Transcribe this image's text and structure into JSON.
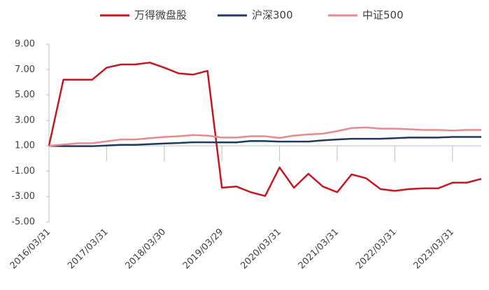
{
  "chart_data": {
    "type": "line",
    "categories": [
      "2016/03/31",
      null,
      null,
      null,
      "2017/03/31",
      null,
      null,
      null,
      "2018/03/30",
      null,
      null,
      null,
      "2019/03/29",
      null,
      null,
      null,
      "2020/03/31",
      null,
      null,
      null,
      "2021/03/31",
      null,
      null,
      null,
      "2022/03/31",
      null,
      null,
      null,
      "2023/03/31",
      null,
      null
    ],
    "series": [
      {
        "name": "万得微盘股",
        "color": "#c8161e",
        "values": [
          1.0,
          6.2,
          6.2,
          6.2,
          7.15,
          7.4,
          7.4,
          7.55,
          7.15,
          6.7,
          6.6,
          6.9,
          -2.3,
          -2.2,
          -2.65,
          -2.95,
          -0.7,
          -2.3,
          -1.2,
          -2.2,
          -2.65,
          -1.25,
          -1.55,
          -2.4,
          -2.55,
          -2.4,
          -2.35,
          -2.35,
          -1.9,
          -1.9,
          -1.6
        ]
      },
      {
        "name": "沪深300",
        "color": "#1f3864",
        "values": [
          1.0,
          0.97,
          0.97,
          0.97,
          1.02,
          1.08,
          1.08,
          1.13,
          1.18,
          1.22,
          1.28,
          1.28,
          1.27,
          1.27,
          1.38,
          1.37,
          1.33,
          1.33,
          1.33,
          1.43,
          1.5,
          1.55,
          1.55,
          1.55,
          1.6,
          1.65,
          1.65,
          1.65,
          1.7,
          1.7,
          1.7
        ]
      },
      {
        "name": "中证500",
        "color": "#e88a8a",
        "values": [
          1.0,
          1.1,
          1.2,
          1.2,
          1.35,
          1.5,
          1.5,
          1.6,
          1.7,
          1.75,
          1.85,
          1.8,
          1.65,
          1.65,
          1.75,
          1.75,
          1.62,
          1.8,
          1.9,
          1.95,
          2.15,
          2.4,
          2.45,
          2.35,
          2.35,
          2.3,
          2.25,
          2.25,
          2.2,
          2.25,
          2.25
        ]
      }
    ],
    "ylim": [
      -5,
      9
    ],
    "yticks": [
      {
        "value": -5,
        "label": "-5.00"
      },
      {
        "value": -3,
        "label": "-3.00"
      },
      {
        "value": -1,
        "label": "-1.00"
      },
      {
        "value": 1,
        "label": "1.00"
      },
      {
        "value": 3,
        "label": "3.00"
      },
      {
        "value": 5,
        "label": "5.00"
      },
      {
        "value": 7,
        "label": "7.00"
      },
      {
        "value": 9,
        "label": "9.00"
      }
    ],
    "x_axis_crosses": 1,
    "grid": false,
    "legend": "top"
  }
}
